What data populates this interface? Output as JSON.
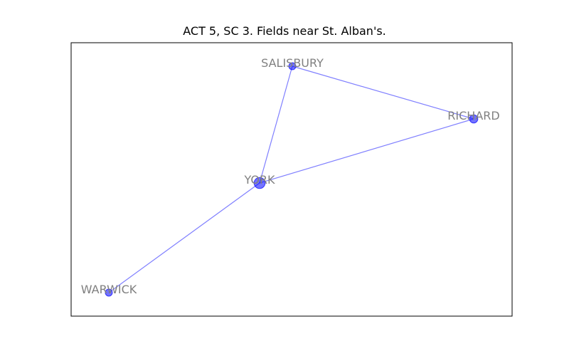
{
  "title": "ACT 5, SC 3. Fields near St. Alban's.",
  "colors": {
    "node": "#0000ff",
    "edge": "#0000ff",
    "label": "#808080",
    "frame": "#000000"
  },
  "graph": {
    "nodes": [
      {
        "id": "SALISBURY",
        "label": "SALISBURY",
        "weight": 1
      },
      {
        "id": "RICHARD",
        "label": "RICHARD",
        "weight": 1.3
      },
      {
        "id": "YORK",
        "label": "YORK",
        "weight": 2
      },
      {
        "id": "WARWICK",
        "label": "WARWICK",
        "weight": 1
      }
    ],
    "edges": [
      {
        "source": "SALISBURY",
        "target": "RICHARD"
      },
      {
        "source": "SALISBURY",
        "target": "YORK"
      },
      {
        "source": "YORK",
        "target": "RICHARD"
      },
      {
        "source": "YORK",
        "target": "WARWICK"
      }
    ]
  }
}
